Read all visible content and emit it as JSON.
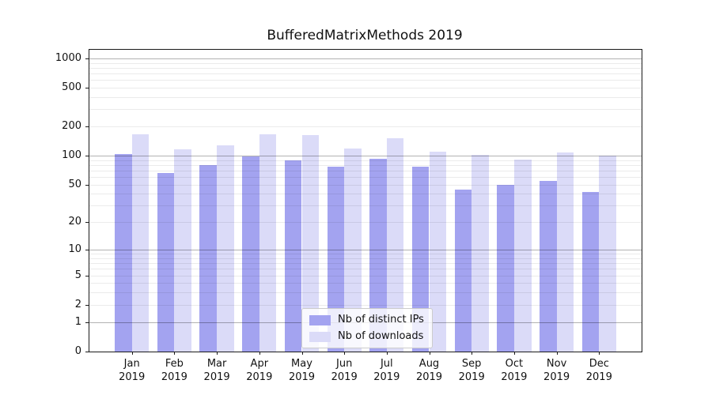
{
  "title": "BufferedMatrixMethods 2019",
  "colors": {
    "ips": "#a3a3f0",
    "downloads": "#dbdbf8",
    "grid_major": "rgba(0,0,0,0.30)",
    "grid_minor": "rgba(0,0,0,0.08)",
    "spine": "#1a1a1a"
  },
  "legend": {
    "items": [
      {
        "label": "Nb of distinct IPs",
        "color_key": "ips"
      },
      {
        "label": "Nb of downloads",
        "color_key": "downloads"
      }
    ],
    "position": "lower center"
  },
  "chart_data": {
    "type": "bar",
    "title": "BufferedMatrixMethods 2019",
    "categories": [
      "Jan 2019",
      "Feb 2019",
      "Mar 2019",
      "Apr 2019",
      "May 2019",
      "Jun 2019",
      "Jul 2019",
      "Aug 2019",
      "Sep 2019",
      "Oct 2019",
      "Nov 2019",
      "Dec 2019"
    ],
    "x_tick_line1": [
      "Jan",
      "Feb",
      "Mar",
      "Apr",
      "May",
      "Jun",
      "Jul",
      "Aug",
      "Sep",
      "Oct",
      "Nov",
      "Dec"
    ],
    "x_tick_line2": [
      "2019",
      "2019",
      "2019",
      "2019",
      "2019",
      "2019",
      "2019",
      "2019",
      "2019",
      "2019",
      "2019",
      "2019"
    ],
    "series": [
      {
        "name": "Nb of distinct IPs",
        "color_key": "ips",
        "values": [
          105,
          67,
          80,
          98,
          90,
          78,
          93,
          78,
          45,
          50,
          55,
          42
        ]
      },
      {
        "name": "Nb of downloads",
        "color_key": "downloads",
        "values": [
          168,
          118,
          128,
          168,
          164,
          119,
          151,
          110,
          103,
          92,
          108,
          100
        ]
      }
    ],
    "xlabel": "",
    "ylabel": "",
    "y_scale": "log10(value+1)",
    "y_ticks": [
      0,
      1,
      2,
      5,
      10,
      20,
      50,
      100,
      200,
      500,
      1000
    ],
    "y_major_gridlines": [
      1,
      10,
      100,
      1000
    ],
    "y_minor_gridlines": [
      2,
      3,
      4,
      5,
      6,
      7,
      8,
      9,
      20,
      30,
      40,
      50,
      60,
      70,
      80,
      90,
      200,
      300,
      400,
      500,
      600,
      700,
      800,
      900
    ],
    "ylim": [
      0,
      1224
    ],
    "grid": true,
    "legend_position": "lower center"
  }
}
